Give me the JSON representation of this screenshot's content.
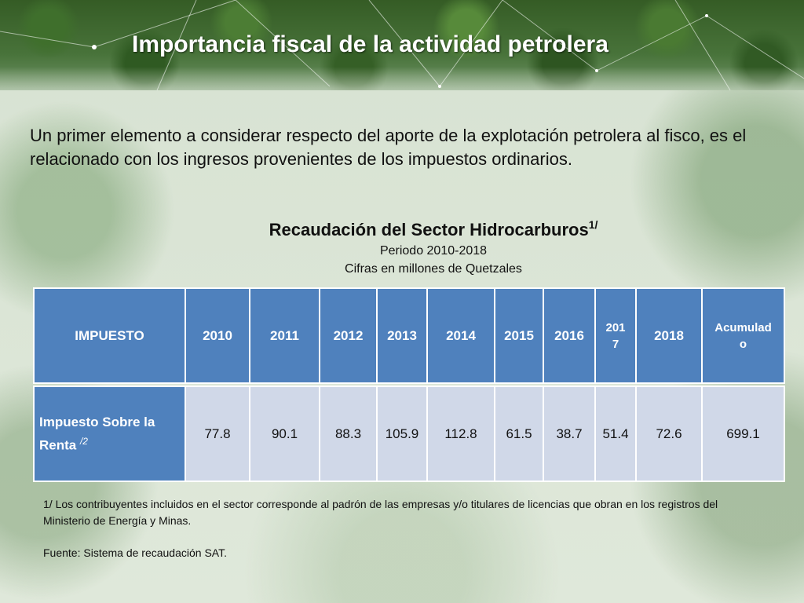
{
  "header": {
    "title": "Importancia fiscal de la actividad petrolera"
  },
  "intro": {
    "text": "Un primer elemento a considerar respecto del aporte de la explotación petrolera al fisco, es el relacionado con los ingresos provenientes de los impuestos ordinarios."
  },
  "table_title": {
    "main": "Recaudación del Sector Hidrocarburos",
    "sup": "1/",
    "period": "Periodo 2010-2018",
    "units": "Cifras en millones de Quetzales"
  },
  "table": {
    "headers": [
      "IMPUESTO",
      "2010",
      "2011",
      "2012",
      "2013",
      "2014",
      "2015",
      "2016",
      "201\n7",
      "2018",
      "Acumulad\no"
    ],
    "rows": [
      {
        "label": "Impuesto Sobre la Renta ",
        "label_sup": "/2",
        "values": [
          "77.8",
          "90.1",
          "88.3",
          "105.9",
          "112.8",
          "61.5",
          "38.7",
          "51.4",
          "72.6",
          "699.1"
        ]
      }
    ]
  },
  "notes": {
    "footnote": "1/ Los contribuyentes incluidos en el sector corresponde al padrón de las empresas y/o titulares de licencias que obran en los registros del Ministerio de Energía y Minas.",
    "source": "Fuente: Sistema de recaudación SAT."
  },
  "colors": {
    "header_cell": "#4f81bd",
    "body_cell": "#d0d8e8",
    "title_text": "#ffffff"
  }
}
